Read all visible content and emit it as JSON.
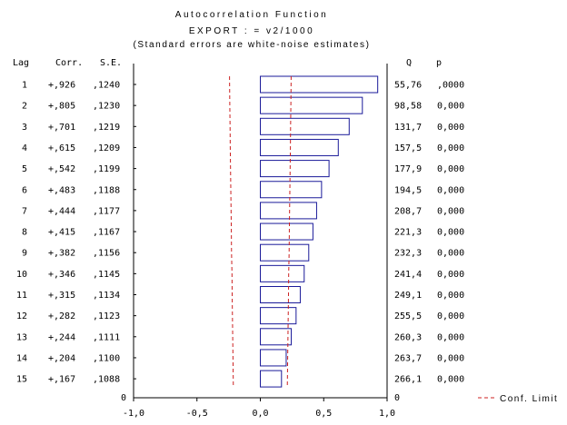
{
  "chart_data": {
    "type": "bar",
    "title": "Autocorrelation Function",
    "subtitle": "EXPORT  : = v2/1000",
    "note": "(Standard errors are white-noise estimates)",
    "column_headers": {
      "lag": "Lag",
      "corr": "Corr.",
      "se": "S.E.",
      "q": "Q",
      "p": "p"
    },
    "rows": [
      {
        "lag": "1",
        "corr": "+,926",
        "se": ",1240",
        "q": "55,76",
        "p": ",0000",
        "value": 0.926,
        "conf": 0.243
      },
      {
        "lag": "2",
        "corr": "+,805",
        "se": ",1230",
        "q": "98,58",
        "p": "0,000",
        "value": 0.805,
        "conf": 0.241
      },
      {
        "lag": "3",
        "corr": "+,701",
        "se": ",1219",
        "q": "131,7",
        "p": "0,000",
        "value": 0.701,
        "conf": 0.239
      },
      {
        "lag": "4",
        "corr": "+,615",
        "se": ",1209",
        "q": "157,5",
        "p": "0,000",
        "value": 0.615,
        "conf": 0.237
      },
      {
        "lag": "5",
        "corr": "+,542",
        "se": ",1199",
        "q": "177,9",
        "p": "0,000",
        "value": 0.542,
        "conf": 0.235
      },
      {
        "lag": "6",
        "corr": "+,483",
        "se": ",1188",
        "q": "194,5",
        "p": "0,000",
        "value": 0.483,
        "conf": 0.233
      },
      {
        "lag": "7",
        "corr": "+,444",
        "se": ",1177",
        "q": "208,7",
        "p": "0,000",
        "value": 0.444,
        "conf": 0.231
      },
      {
        "lag": "8",
        "corr": "+,415",
        "se": ",1167",
        "q": "221,3",
        "p": "0,000",
        "value": 0.415,
        "conf": 0.229
      },
      {
        "lag": "9",
        "corr": "+,382",
        "se": ",1156",
        "q": "232,3",
        "p": "0,000",
        "value": 0.382,
        "conf": 0.227
      },
      {
        "lag": "10",
        "corr": "+,346",
        "se": ",1145",
        "q": "241,4",
        "p": "0,000",
        "value": 0.346,
        "conf": 0.224
      },
      {
        "lag": "11",
        "corr": "+,315",
        "se": ",1134",
        "q": "249,1",
        "p": "0,000",
        "value": 0.315,
        "conf": 0.222
      },
      {
        "lag": "12",
        "corr": "+,282",
        "se": ",1123",
        "q": "255,5",
        "p": "0,000",
        "value": 0.282,
        "conf": 0.22
      },
      {
        "lag": "13",
        "corr": "+,244",
        "se": ",1111",
        "q": "260,3",
        "p": "0,000",
        "value": 0.244,
        "conf": 0.218
      },
      {
        "lag": "14",
        "corr": "+,204",
        "se": ",1100",
        "q": "263,7",
        "p": "0,000",
        "value": 0.204,
        "conf": 0.216
      },
      {
        "lag": "15",
        "corr": "+,167",
        "se": ",1088",
        "q": "266,1",
        "p": "0,000",
        "value": 0.167,
        "conf": 0.213
      }
    ],
    "x_ticks": [
      "-1,0",
      "-0,5",
      "0,0",
      "0,5",
      "1,0"
    ],
    "x_tick_values": [
      -1.0,
      -0.5,
      0.0,
      0.5,
      1.0
    ],
    "xlim": [
      -1.0,
      1.0
    ],
    "bottom_labels": {
      "left": "0",
      "right": "0"
    },
    "legend": {
      "label": "Conf. Limit"
    },
    "colors": {
      "bar_stroke": "#1a1a99",
      "conf_line": "#cc2222",
      "axis": "#000000"
    }
  }
}
